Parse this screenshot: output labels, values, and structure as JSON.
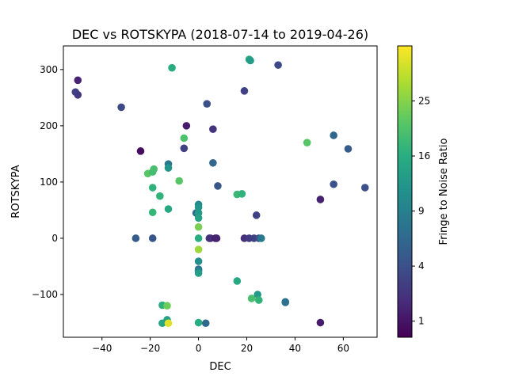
{
  "chart_data": {
    "type": "scatter",
    "title": "DEC vs ROTSKYPA (2018-07-14 to 2019-04-26)",
    "xlabel": "DEC",
    "ylabel": "ROTSKYPA",
    "xlim": [
      -56,
      74
    ],
    "ylim": [
      -176,
      342
    ],
    "xticks": [
      -40,
      -20,
      0,
      20,
      40,
      60
    ],
    "yticks": [
      -100,
      0,
      100,
      200,
      300
    ],
    "xtick_labels": [
      "−40",
      "−20",
      "0",
      "20",
      "40",
      "60"
    ],
    "ytick_labels": [
      "−100",
      "0",
      "100",
      "200",
      "300"
    ],
    "grid": false,
    "legend": "none",
    "colorbar": {
      "label": "Fringe to Noise Ratio",
      "colormap": "viridis",
      "scale": "sqrt",
      "range": [
        0.5,
        36
      ],
      "ticks": [
        1,
        4,
        9,
        16,
        25
      ],
      "tick_labels": [
        "1",
        "4",
        "9",
        "16",
        "25"
      ]
    },
    "points": [
      {
        "x": -50,
        "y": 281,
        "c": 1.5
      },
      {
        "x": -51,
        "y": 260,
        "c": 3
      },
      {
        "x": -50,
        "y": 255,
        "c": 2.5
      },
      {
        "x": -32,
        "y": 233,
        "c": 3.5
      },
      {
        "x": -24,
        "y": 155,
        "c": 0.8
      },
      {
        "x": -26,
        "y": 0,
        "c": 5
      },
      {
        "x": -21,
        "y": 115,
        "c": 21
      },
      {
        "x": -19,
        "y": 118,
        "c": 19
      },
      {
        "x": -18.5,
        "y": 123,
        "c": 19.5
      },
      {
        "x": -19,
        "y": 90,
        "c": 17
      },
      {
        "x": -19,
        "y": 46,
        "c": 17.5
      },
      {
        "x": -19,
        "y": 0,
        "c": 4.5
      },
      {
        "x": -16,
        "y": 75,
        "c": 17
      },
      {
        "x": -15,
        "y": -119,
        "c": 16.5
      },
      {
        "x": -15,
        "y": -151,
        "c": 14.5
      },
      {
        "x": -13,
        "y": -145,
        "c": 14
      },
      {
        "x": -13,
        "y": -120,
        "c": 23
      },
      {
        "x": -12.5,
        "y": -151,
        "c": 33
      },
      {
        "x": -12.5,
        "y": 132,
        "c": 8
      },
      {
        "x": -12.5,
        "y": 125,
        "c": 12
      },
      {
        "x": -12.5,
        "y": 52,
        "c": 15
      },
      {
        "x": -11,
        "y": 303,
        "c": 16
      },
      {
        "x": -8,
        "y": 102,
        "c": 21
      },
      {
        "x": -6,
        "y": 178,
        "c": 20
      },
      {
        "x": -6,
        "y": 160,
        "c": 3
      },
      {
        "x": -5,
        "y": 200,
        "c": 1.2
      },
      {
        "x": -1,
        "y": 45,
        "c": 7
      },
      {
        "x": 0,
        "y": 60,
        "c": 10
      },
      {
        "x": 0,
        "y": 55,
        "c": 12
      },
      {
        "x": 0,
        "y": 45,
        "c": 12.5
      },
      {
        "x": 0,
        "y": 36,
        "c": 14
      },
      {
        "x": 0,
        "y": 20,
        "c": 24
      },
      {
        "x": 0,
        "y": 0,
        "c": 16
      },
      {
        "x": 0,
        "y": -20,
        "c": 27
      },
      {
        "x": 0,
        "y": -41,
        "c": 11
      },
      {
        "x": 0,
        "y": -55,
        "c": 7
      },
      {
        "x": 0,
        "y": -58,
        "c": 9
      },
      {
        "x": 0,
        "y": -62,
        "c": 13
      },
      {
        "x": 0,
        "y": -150,
        "c": 16
      },
      {
        "x": 3,
        "y": -151,
        "c": 6
      },
      {
        "x": 3.5,
        "y": 239,
        "c": 4
      },
      {
        "x": 4.5,
        "y": 0,
        "c": 2.5
      },
      {
        "x": 5,
        "y": 0,
        "c": 2
      },
      {
        "x": 6,
        "y": 194,
        "c": 2.2
      },
      {
        "x": 6,
        "y": 134,
        "c": 6
      },
      {
        "x": 7,
        "y": 0,
        "c": 1.2
      },
      {
        "x": 7.5,
        "y": 0,
        "c": 1.5
      },
      {
        "x": 8,
        "y": 93,
        "c": 4.5
      },
      {
        "x": 16,
        "y": 78,
        "c": 18
      },
      {
        "x": 16,
        "y": -76,
        "c": 15
      },
      {
        "x": 18,
        "y": 79,
        "c": 17
      },
      {
        "x": 19,
        "y": 262,
        "c": 3
      },
      {
        "x": 19,
        "y": 0,
        "c": 2
      },
      {
        "x": 21,
        "y": 318,
        "c": 14.5
      },
      {
        "x": 21.5,
        "y": 316,
        "c": 13
      },
      {
        "x": 21,
        "y": 0,
        "c": 2.5
      },
      {
        "x": 22,
        "y": -107,
        "c": 19.5
      },
      {
        "x": 23,
        "y": 0,
        "c": 3
      },
      {
        "x": 24,
        "y": 41,
        "c": 3
      },
      {
        "x": 24.5,
        "y": -100,
        "c": 12.5
      },
      {
        "x": 25,
        "y": -110,
        "c": 17
      },
      {
        "x": 25,
        "y": 0,
        "c": 4
      },
      {
        "x": 26,
        "y": 0,
        "c": 8
      },
      {
        "x": 33,
        "y": 308,
        "c": 3.5
      },
      {
        "x": 36,
        "y": -113,
        "c": 8.5
      },
      {
        "x": 36,
        "y": -114,
        "c": 7
      },
      {
        "x": 45,
        "y": 170,
        "c": 21
      },
      {
        "x": 50.5,
        "y": 69,
        "c": 1.5
      },
      {
        "x": 50.5,
        "y": -150,
        "c": 1.2
      },
      {
        "x": 56,
        "y": 183,
        "c": 6
      },
      {
        "x": 56,
        "y": 96,
        "c": 4
      },
      {
        "x": 62,
        "y": 159,
        "c": 5
      },
      {
        "x": 69,
        "y": 90,
        "c": 4
      }
    ]
  }
}
